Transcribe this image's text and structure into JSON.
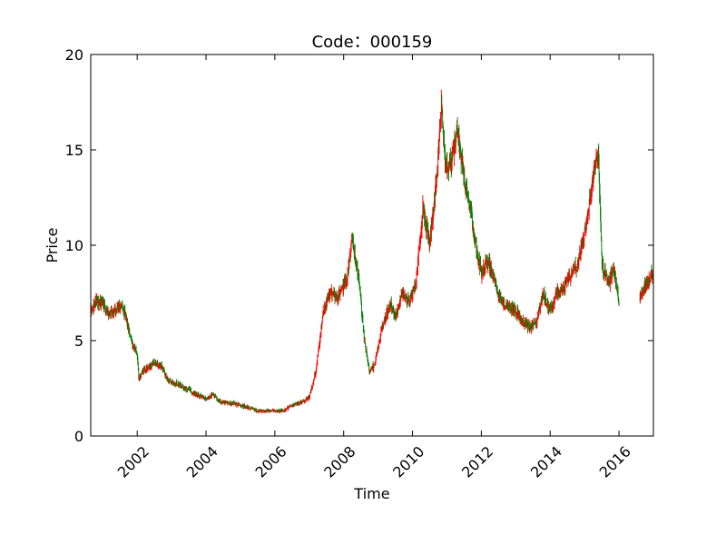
{
  "chart_data": {
    "type": "candlestick",
    "title": "Code：000159",
    "xlabel": "Time",
    "ylabel": "Price",
    "xlim": [
      2000.65,
      2017.0
    ],
    "ylim": [
      0,
      20
    ],
    "x_ticks": [
      2002,
      2004,
      2006,
      2008,
      2010,
      2012,
      2014,
      2016
    ],
    "x_tick_labels": [
      "2002",
      "2004",
      "2006",
      "2008",
      "2010",
      "2012",
      "2014",
      "2016"
    ],
    "y_ticks": [
      0,
      5,
      10,
      15,
      20
    ],
    "y_tick_labels": [
      "0",
      "5",
      "10",
      "15",
      "20"
    ],
    "grid": false,
    "legend": "none",
    "colors": {
      "up": "#ff0000",
      "down": "#008000"
    },
    "gaps": [
      [
        2016.0,
        2016.6
      ]
    ],
    "series": [
      {
        "values": [
          [
            2000.65,
            6.5
          ],
          [
            2000.8,
            7.1
          ],
          [
            2001.0,
            6.9
          ],
          [
            2001.2,
            6.4
          ],
          [
            2001.4,
            6.6
          ],
          [
            2001.55,
            7.0
          ],
          [
            2001.7,
            6.0
          ],
          [
            2001.85,
            4.8
          ],
          [
            2002.0,
            4.3
          ],
          [
            2002.05,
            3.0
          ],
          [
            2002.2,
            3.5
          ],
          [
            2002.5,
            3.8
          ],
          [
            2002.7,
            3.7
          ],
          [
            2002.9,
            2.9
          ],
          [
            2003.2,
            2.7
          ],
          [
            2003.5,
            2.4
          ],
          [
            2003.8,
            2.1
          ],
          [
            2004.0,
            1.9
          ],
          [
            2004.2,
            2.2
          ],
          [
            2004.4,
            1.8
          ],
          [
            2004.8,
            1.7
          ],
          [
            2005.2,
            1.5
          ],
          [
            2005.5,
            1.3
          ],
          [
            2005.9,
            1.35
          ],
          [
            2006.2,
            1.3
          ],
          [
            2006.5,
            1.6
          ],
          [
            2006.8,
            1.8
          ],
          [
            2007.0,
            2.0
          ],
          [
            2007.2,
            3.5
          ],
          [
            2007.4,
            6.5
          ],
          [
            2007.6,
            7.5
          ],
          [
            2007.8,
            7.2
          ],
          [
            2008.1,
            8.2
          ],
          [
            2008.25,
            10.5
          ],
          [
            2008.45,
            8.0
          ],
          [
            2008.6,
            5.0
          ],
          [
            2008.75,
            3.3
          ],
          [
            2008.9,
            3.8
          ],
          [
            2009.1,
            5.5
          ],
          [
            2009.35,
            7.0
          ],
          [
            2009.5,
            6.2
          ],
          [
            2009.7,
            7.5
          ],
          [
            2009.9,
            7.0
          ],
          [
            2010.1,
            8.0
          ],
          [
            2010.3,
            12.0
          ],
          [
            2010.5,
            10.0
          ],
          [
            2010.7,
            13.5
          ],
          [
            2010.85,
            17.5
          ],
          [
            2010.95,
            14.0
          ],
          [
            2011.15,
            14.5
          ],
          [
            2011.3,
            16.0
          ],
          [
            2011.5,
            13.5
          ],
          [
            2011.7,
            11.5
          ],
          [
            2011.85,
            10.0
          ],
          [
            2012.0,
            8.5
          ],
          [
            2012.2,
            9.2
          ],
          [
            2012.4,
            8.0
          ],
          [
            2012.6,
            7.0
          ],
          [
            2012.8,
            6.8
          ],
          [
            2013.0,
            6.5
          ],
          [
            2013.2,
            6.0
          ],
          [
            2013.4,
            5.7
          ],
          [
            2013.6,
            6.0
          ],
          [
            2013.8,
            7.5
          ],
          [
            2014.0,
            6.5
          ],
          [
            2014.2,
            7.5
          ],
          [
            2014.4,
            7.8
          ],
          [
            2014.6,
            8.5
          ],
          [
            2014.8,
            9.0
          ],
          [
            2015.0,
            10.5
          ],
          [
            2015.2,
            13.0
          ],
          [
            2015.4,
            15.0
          ],
          [
            2015.5,
            9.0
          ],
          [
            2015.7,
            8.0
          ],
          [
            2015.85,
            8.8
          ],
          [
            2016.0,
            7.0
          ],
          [
            2016.6,
            7.2
          ],
          [
            2016.8,
            8.0
          ],
          [
            2016.95,
            8.5
          ],
          [
            2017.0,
            8.2
          ]
        ]
      }
    ]
  }
}
